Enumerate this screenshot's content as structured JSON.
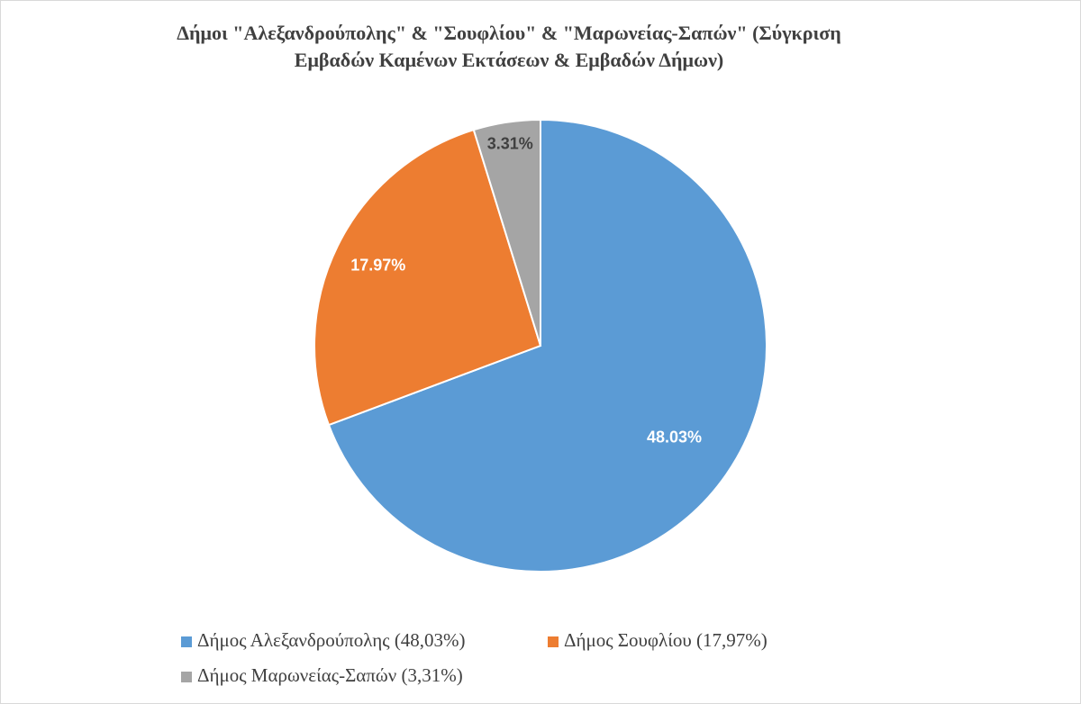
{
  "chart_data": {
    "type": "pie",
    "title": [
      "Δήμοι \"Αλεξανδρούπολης\" & \"Σουφλίου\" & \"Μαρωνείας-Σαπών\" (Σύγκριση",
      "Εμβαδών Καμένων Εκτάσεων & Εμβαδών Δήμων)"
    ],
    "categories": [
      "Δήμος Αλεξανδρούπολης (48,03%)",
      "Δήμος Σουφλίου (17,97%)",
      "Δήμος Μαρωνείας-Σαπών (3,31%)"
    ],
    "values": [
      48.03,
      17.97,
      3.31
    ],
    "value_labels": [
      "48.03%",
      "17.97%",
      "3.31%"
    ],
    "colors": [
      "#5b9bd5",
      "#ed7d31",
      "#a5a5a5"
    ]
  }
}
